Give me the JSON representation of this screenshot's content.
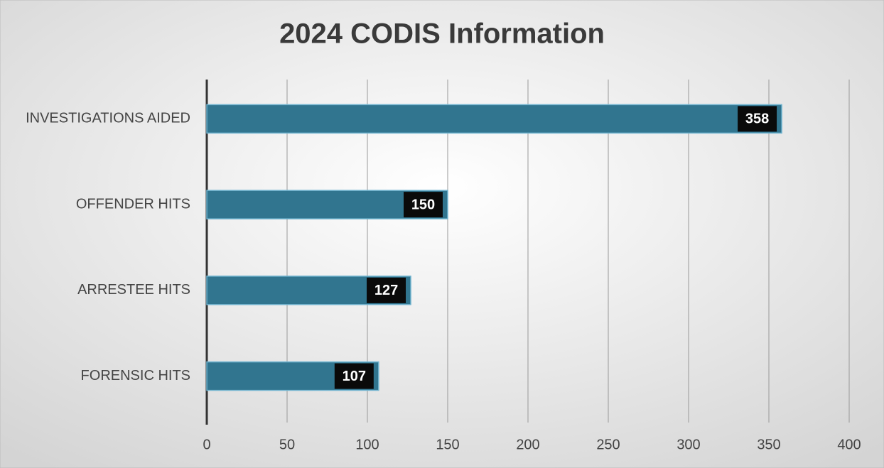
{
  "chart_data": {
    "type": "bar",
    "orientation": "horizontal",
    "title": "2024 CODIS Information",
    "categories": [
      "INVESTIGATIONS AIDED",
      "OFFENDER HITS",
      "ARRESTEE HITS",
      "FORENSIC HITS"
    ],
    "values": [
      358,
      150,
      127,
      107
    ],
    "color": "#31758f",
    "xlim": [
      0,
      400
    ],
    "xticks": [
      0,
      50,
      100,
      150,
      200,
      250,
      300,
      350,
      400
    ],
    "grid": true
  }
}
